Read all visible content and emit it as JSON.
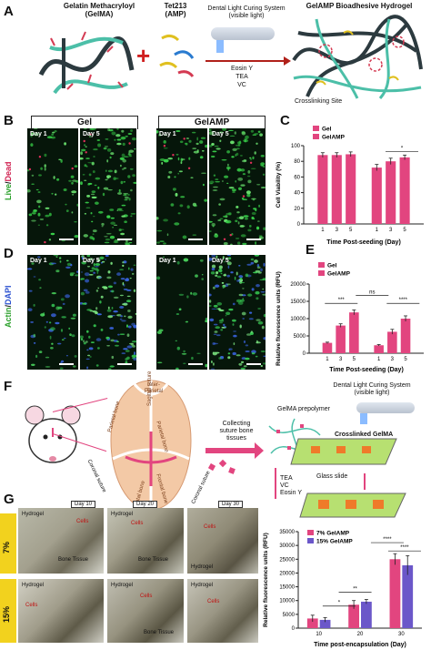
{
  "panels": {
    "A": {
      "letter": "A",
      "gelma_label": "Gelatin Methacryloyl\n(GelMA)",
      "plus": "+",
      "amp_label": "Tet213\n(AMP)",
      "device_label": "Dental Light Curing System\n(visible light)",
      "reagents": [
        "Eosin Y",
        "TEA",
        "VC"
      ],
      "product_label": "GelAMP Bioadhesive Hydrogel",
      "crosslink_label": "Crosslinking Site"
    },
    "B": {
      "letter": "B",
      "group_gel": "Gel",
      "group_gelamp": "GelAMP",
      "ylabel_live": "Live",
      "ylabel_sep": "/",
      "ylabel_dead": "Dead",
      "days": [
        "Day 1",
        "Day 5",
        "Day 1",
        "Day 5"
      ]
    },
    "D": {
      "letter": "D",
      "ylabel_actin": "Actin",
      "ylabel_sep": "/",
      "ylabel_dapi": "DAPI",
      "days": [
        "Day 1",
        "Day 5",
        "Day 1",
        "Day 5"
      ]
    },
    "F": {
      "letter": "F",
      "bones": [
        "Inter-\nParietal",
        "Parietal bone",
        "Parietal bone",
        "Sagittal suture",
        "Frontal bone",
        "Frontal bone"
      ],
      "sutures": [
        "Coronal suture",
        "Coronal suture"
      ],
      "collecting": "Collecting\nsuture bone\ntissues",
      "prepolymer": "GelMA prepolymer",
      "device_label": "Dental Light Curing System\n(visible light)",
      "crosslinked": "Crosslinked GelMA",
      "reagents": [
        "TEA",
        "VC",
        "Eosin Y"
      ],
      "glass_slide": "Glass slide"
    },
    "G": {
      "letter": "G",
      "days": [
        "Day 10",
        "Day 20",
        "Day 30"
      ],
      "rows": [
        "7%",
        "15%"
      ],
      "hydrogel": "Hydrogel",
      "cells": "Cells",
      "bone_tissue": "Bone Tissue"
    }
  },
  "chart_data": [
    {
      "id": "C",
      "type": "bar",
      "letter": "C",
      "xlabel": "Time Post-seeding (Day)",
      "ylabel": "Cell Viability (%)",
      "ylim": [
        0,
        100
      ],
      "yticks": [
        0,
        20,
        40,
        60,
        80,
        100
      ],
      "categories": [
        "1",
        "3",
        "5"
      ],
      "series": [
        {
          "name": "Gel",
          "color": "#e2457f",
          "values": [
            88,
            88,
            89
          ],
          "errors": [
            3,
            3,
            3
          ]
        },
        {
          "name": "GelAMP",
          "color": "#e2457f",
          "values": [
            72,
            80,
            85
          ],
          "errors": [
            4,
            4,
            3
          ]
        }
      ],
      "annotations": [
        {
          "text": "*",
          "between": "GelAMP day1-day5"
        }
      ],
      "legend": "top-left"
    },
    {
      "id": "E",
      "type": "bar",
      "letter": "E",
      "xlabel": "Time Post-seeding (Day)",
      "ylabel": "Relative fluorescence units (RFU)",
      "ylim": [
        0,
        20000
      ],
      "yticks": [
        0,
        5000,
        10000,
        15000,
        20000
      ],
      "categories": [
        "1",
        "3",
        "5"
      ],
      "series": [
        {
          "name": "Gel",
          "color": "#e2457f",
          "values": [
            3000,
            8000,
            11800
          ],
          "errors": [
            200,
            500,
            700
          ]
        },
        {
          "name": "GelAMP",
          "color": "#e2457f",
          "values": [
            2300,
            6200,
            10000
          ],
          "errors": [
            200,
            700,
            800
          ]
        }
      ],
      "annotations": [
        "***",
        "ns",
        "****"
      ],
      "legend": "top-left"
    },
    {
      "id": "G",
      "type": "bar",
      "xlabel": "Time post-encapsulation (Day)",
      "ylabel": "Relative fluorescence units (RFU)",
      "ylim": [
        0,
        35000
      ],
      "yticks": [
        0,
        5000,
        10000,
        15000,
        20000,
        25000,
        30000,
        35000
      ],
      "categories": [
        "10",
        "20",
        "30"
      ],
      "series": [
        {
          "name": "7% GelAMP",
          "color": "#e2457f",
          "values": [
            3500,
            8500,
            25000
          ],
          "errors": [
            1200,
            1500,
            2000
          ]
        },
        {
          "name": "15% GelAMP",
          "color": "#6b57c9",
          "values": [
            3000,
            9600,
            22800
          ],
          "errors": [
            800,
            800,
            3500
          ]
        }
      ],
      "annotations": [
        "*",
        "**",
        "****",
        "****"
      ],
      "legend": "top-left"
    }
  ]
}
